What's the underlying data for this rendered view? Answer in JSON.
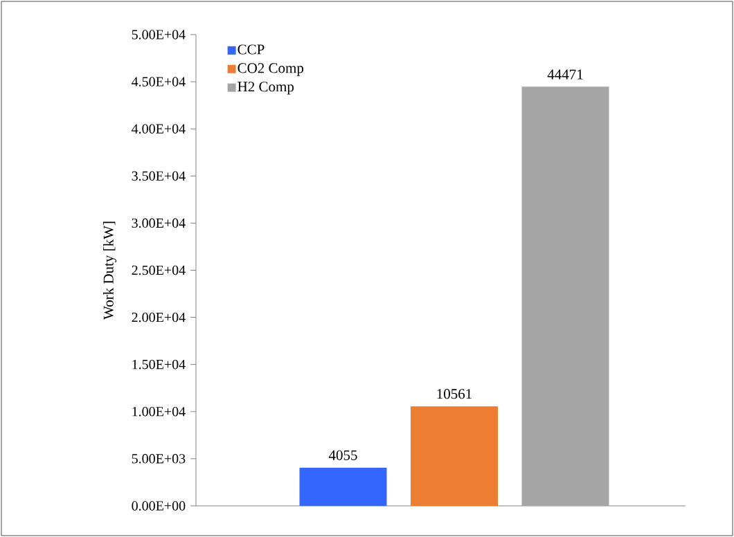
{
  "chart_data": {
    "type": "bar",
    "ylabel": "Work Duty [kW]",
    "categories": [
      null
    ],
    "series": [
      {
        "name": "CCP",
        "color": "#3366ff",
        "values": [
          4055
        ]
      },
      {
        "name": "CO2 Comp",
        "color": "#ed7d31",
        "values": [
          10561
        ]
      },
      {
        "name": "H2 Comp",
        "color": "#a5a5a5",
        "values": [
          44471
        ]
      }
    ],
    "ylim": [
      0,
      50000
    ],
    "yticks": [
      {
        "value": 0,
        "label": "0.00E+00"
      },
      {
        "value": 5000,
        "label": "5.00E+03"
      },
      {
        "value": 10000,
        "label": "1.00E+04"
      },
      {
        "value": 15000,
        "label": "1.50E+04"
      },
      {
        "value": 20000,
        "label": "2.00E+04"
      },
      {
        "value": 25000,
        "label": "2.50E+04"
      },
      {
        "value": 30000,
        "label": "3.00E+04"
      },
      {
        "value": 35000,
        "label": "3.50E+04"
      },
      {
        "value": 40000,
        "label": "4.00E+04"
      },
      {
        "value": 45000,
        "label": "4.50E+04"
      },
      {
        "value": 50000,
        "label": "5.00E+04"
      }
    ],
    "data_labels": true,
    "legend": "top left",
    "grid": false
  }
}
